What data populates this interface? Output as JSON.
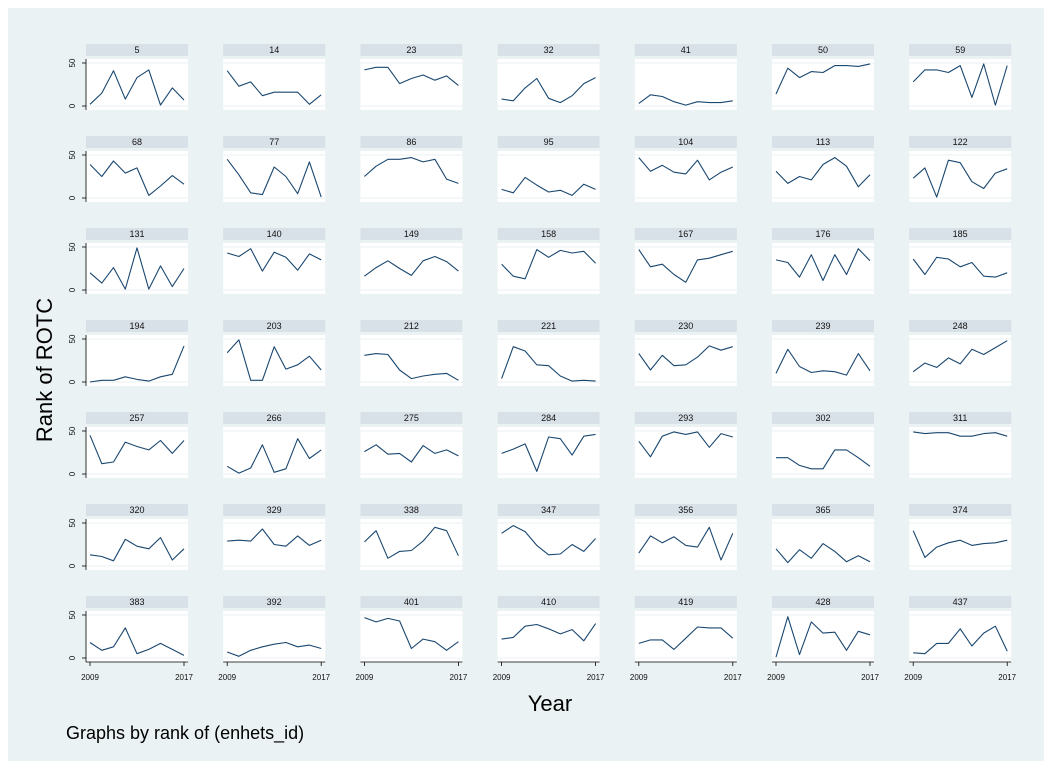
{
  "chart_data": {
    "type": "line",
    "ylabel": "Rank of ROTC",
    "xlabel": "Year",
    "note": "Graphs by rank of (enhets_id)",
    "x": [
      2009,
      2010,
      2011,
      2012,
      2013,
      2014,
      2015,
      2016,
      2017
    ],
    "x_ticks": [
      "2009",
      "2017"
    ],
    "y_ticks": [
      "0",
      "50"
    ],
    "ylim": [
      0,
      50
    ],
    "grid": true,
    "line_color": "#1a476f",
    "panel_header_color": "#d9e1e8",
    "background_color": "#eaf2f3",
    "panels": [
      {
        "title": "5",
        "values": [
          2,
          15,
          41,
          8,
          33,
          42,
          1,
          21,
          7
        ]
      },
      {
        "title": "14",
        "values": [
          41,
          23,
          28,
          12,
          16,
          16,
          16,
          2,
          13
        ]
      },
      {
        "title": "23",
        "values": [
          42,
          45,
          45,
          26,
          32,
          36,
          30,
          35,
          24
        ]
      },
      {
        "title": "32",
        "values": [
          8,
          6,
          21,
          32,
          9,
          4,
          12,
          26,
          33
        ]
      },
      {
        "title": "41",
        "values": [
          3,
          13,
          11,
          5,
          1,
          5,
          4,
          4,
          6
        ]
      },
      {
        "title": "50",
        "values": [
          14,
          44,
          33,
          40,
          39,
          47,
          47,
          46,
          49
        ]
      },
      {
        "title": "59",
        "values": [
          28,
          42,
          42,
          39,
          47,
          10,
          49,
          1,
          47
        ]
      },
      {
        "title": "68",
        "values": [
          39,
          25,
          43,
          29,
          35,
          3,
          14,
          26,
          16
        ]
      },
      {
        "title": "77",
        "values": [
          45,
          27,
          6,
          4,
          36,
          25,
          5,
          42,
          1
        ]
      },
      {
        "title": "86",
        "values": [
          25,
          37,
          45,
          45,
          47,
          42,
          45,
          22,
          17
        ]
      },
      {
        "title": "95",
        "values": [
          10,
          6,
          24,
          15,
          7,
          9,
          3,
          16,
          10
        ]
      },
      {
        "title": "104",
        "values": [
          47,
          31,
          38,
          30,
          28,
          44,
          21,
          30,
          36
        ]
      },
      {
        "title": "113",
        "values": [
          31,
          17,
          25,
          21,
          39,
          47,
          37,
          13,
          27
        ]
      },
      {
        "title": "122",
        "values": [
          23,
          35,
          1,
          44,
          41,
          19,
          11,
          29,
          34
        ]
      },
      {
        "title": "131",
        "values": [
          20,
          8,
          26,
          1,
          49,
          1,
          28,
          4,
          25
        ]
      },
      {
        "title": "140",
        "values": [
          43,
          39,
          48,
          22,
          44,
          38,
          23,
          42,
          35
        ]
      },
      {
        "title": "149",
        "values": [
          16,
          26,
          34,
          25,
          17,
          34,
          39,
          33,
          22
        ]
      },
      {
        "title": "158",
        "values": [
          30,
          16,
          13,
          47,
          38,
          46,
          43,
          45,
          31
        ]
      },
      {
        "title": "167",
        "values": [
          47,
          27,
          30,
          18,
          9,
          35,
          37,
          41,
          45
        ]
      },
      {
        "title": "176",
        "values": [
          35,
          32,
          15,
          41,
          11,
          41,
          18,
          48,
          34
        ]
      },
      {
        "title": "185",
        "values": [
          36,
          18,
          38,
          36,
          27,
          32,
          16,
          15,
          20
        ]
      },
      {
        "title": "194",
        "values": [
          0,
          2,
          2,
          6,
          3,
          1,
          6,
          9,
          42
        ]
      },
      {
        "title": "203",
        "values": [
          34,
          49,
          2,
          2,
          41,
          15,
          20,
          30,
          14
        ]
      },
      {
        "title": "212",
        "values": [
          31,
          33,
          32,
          14,
          4,
          7,
          9,
          10,
          2
        ]
      },
      {
        "title": "221",
        "values": [
          4,
          41,
          36,
          20,
          19,
          7,
          1,
          2,
          1
        ]
      },
      {
        "title": "230",
        "values": [
          33,
          14,
          31,
          19,
          20,
          29,
          42,
          37,
          41
        ]
      },
      {
        "title": "239",
        "values": [
          10,
          38,
          18,
          11,
          13,
          12,
          8,
          33,
          13
        ]
      },
      {
        "title": "248",
        "values": [
          12,
          22,
          17,
          28,
          21,
          38,
          32,
          40,
          48
        ]
      },
      {
        "title": "257",
        "values": [
          45,
          12,
          14,
          37,
          32,
          28,
          39,
          24,
          39
        ]
      },
      {
        "title": "266",
        "values": [
          9,
          1,
          7,
          34,
          2,
          6,
          41,
          18,
          28
        ]
      },
      {
        "title": "275",
        "values": [
          26,
          34,
          23,
          24,
          14,
          33,
          24,
          28,
          21
        ]
      },
      {
        "title": "284",
        "values": [
          24,
          29,
          35,
          3,
          43,
          41,
          22,
          44,
          46
        ]
      },
      {
        "title": "293",
        "values": [
          38,
          20,
          44,
          49,
          46,
          49,
          31,
          47,
          43
        ]
      },
      {
        "title": "302",
        "values": [
          19,
          19,
          10,
          6,
          6,
          28,
          28,
          19,
          9
        ]
      },
      {
        "title": "311",
        "values": [
          49,
          47,
          48,
          48,
          44,
          44,
          47,
          48,
          44
        ]
      },
      {
        "title": "320",
        "values": [
          13,
          11,
          6,
          31,
          23,
          20,
          33,
          7,
          20
        ]
      },
      {
        "title": "329",
        "values": [
          29,
          30,
          29,
          43,
          25,
          23,
          35,
          24,
          30
        ]
      },
      {
        "title": "338",
        "values": [
          28,
          41,
          9,
          17,
          18,
          29,
          45,
          41,
          12
        ]
      },
      {
        "title": "347",
        "values": [
          38,
          47,
          40,
          24,
          13,
          14,
          25,
          17,
          32
        ]
      },
      {
        "title": "356",
        "values": [
          15,
          35,
          27,
          34,
          24,
          22,
          45,
          7,
          38
        ]
      },
      {
        "title": "365",
        "values": [
          20,
          4,
          19,
          9,
          26,
          17,
          5,
          12,
          5
        ]
      },
      {
        "title": "374",
        "values": [
          41,
          10,
          22,
          27,
          30,
          24,
          26,
          27,
          30
        ]
      },
      {
        "title": "383",
        "values": [
          18,
          9,
          13,
          35,
          5,
          10,
          17,
          10,
          3
        ]
      },
      {
        "title": "392",
        "values": [
          7,
          2,
          9,
          13,
          16,
          18,
          13,
          15,
          11
        ]
      },
      {
        "title": "401",
        "values": [
          47,
          42,
          46,
          43,
          11,
          22,
          19,
          9,
          19
        ]
      },
      {
        "title": "410",
        "values": [
          22,
          24,
          37,
          39,
          34,
          28,
          33,
          20,
          40
        ]
      },
      {
        "title": "419",
        "values": [
          17,
          21,
          21,
          10,
          23,
          36,
          35,
          35,
          23
        ]
      },
      {
        "title": "428",
        "values": [
          1,
          48,
          4,
          42,
          29,
          30,
          9,
          31,
          27
        ]
      },
      {
        "title": "437",
        "values": [
          6,
          5,
          17,
          17,
          34,
          14,
          29,
          37,
          8
        ]
      }
    ]
  }
}
